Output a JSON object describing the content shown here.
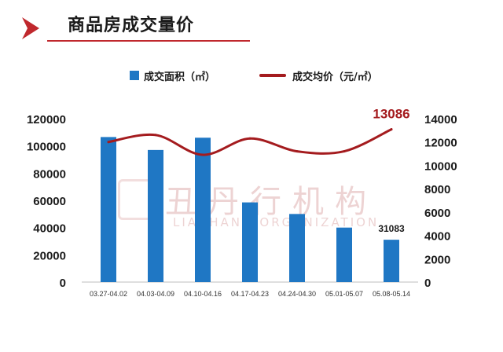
{
  "header": {
    "title": "商品房成交量价",
    "accent_color": "#c0282d",
    "icon": "chevron-right-icon"
  },
  "watermark": {
    "text_cn": "丑丹行机构",
    "text_en": "LIANHANG ORGANIZATION"
  },
  "chart_data": {
    "type": "bar",
    "categories": [
      "03.27-04.02",
      "04.03-04.09",
      "04.10-04.16",
      "04.17-04.23",
      "04.24-04.30",
      "05.01-05.07",
      "05.08-05.14"
    ],
    "series": [
      {
        "name": "成交面积（㎡）",
        "type": "bar",
        "axis": "left",
        "color": "#1f77c4",
        "values": [
          106500,
          97000,
          106000,
          58500,
          50000,
          40000,
          31083
        ]
      },
      {
        "name": "成交均价（元/㎡）",
        "type": "line",
        "axis": "right",
        "color": "#a41b1e",
        "values": [
          12000,
          12600,
          10900,
          12300,
          11200,
          11200,
          13086
        ]
      }
    ],
    "annotations": [
      {
        "series": 0,
        "index": 6,
        "text": "31083"
      },
      {
        "series": 1,
        "index": 6,
        "text": "13086"
      }
    ],
    "y_left": {
      "ylim": [
        0,
        120000
      ],
      "ticks": [
        "0",
        "20000",
        "40000",
        "60000",
        "80000",
        "100000",
        "120000"
      ]
    },
    "y_right": {
      "ylim": [
        0,
        14000
      ],
      "ticks": [
        "0",
        "2000",
        "4000",
        "6000",
        "8000",
        "10000",
        "12000",
        "14000"
      ]
    },
    "grid": false,
    "legend_position": "top"
  }
}
